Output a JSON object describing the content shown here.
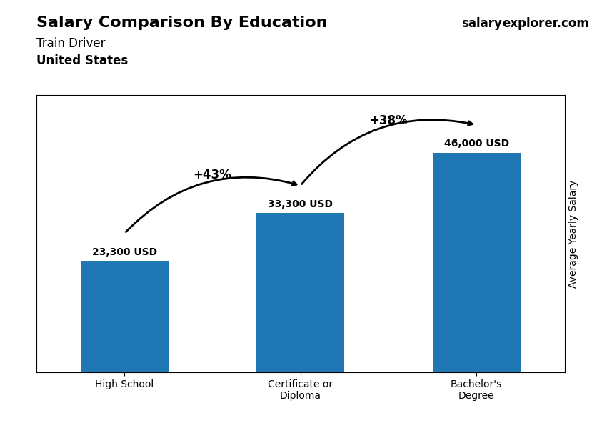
{
  "chart_data": {
    "type": "bar",
    "title": "Salary Comparison By Education",
    "subtitle": "Train Driver",
    "y_label": "Average Yearly Salary",
    "categories": [
      "High School",
      "Certificate or\nDiploma",
      "Bachelor's\nDegree"
    ],
    "values": [
      23300,
      33300,
      46000
    ],
    "value_labels": [
      "23,300 USD",
      "33,300 USD",
      "46,000 USD"
    ],
    "data_labels": true,
    "ylim": [
      0,
      58000
    ],
    "yticks": [],
    "tick_labels": "x",
    "grid": false,
    "annotations": [
      {
        "text": "+43%",
        "from": 0,
        "to": 1
      },
      {
        "text": "+38%",
        "from": 1,
        "to": 2
      },
      {
        "text": "United States"
      },
      {
        "text": "salary"
      },
      {
        "text": "explorer.com"
      }
    ]
  }
}
